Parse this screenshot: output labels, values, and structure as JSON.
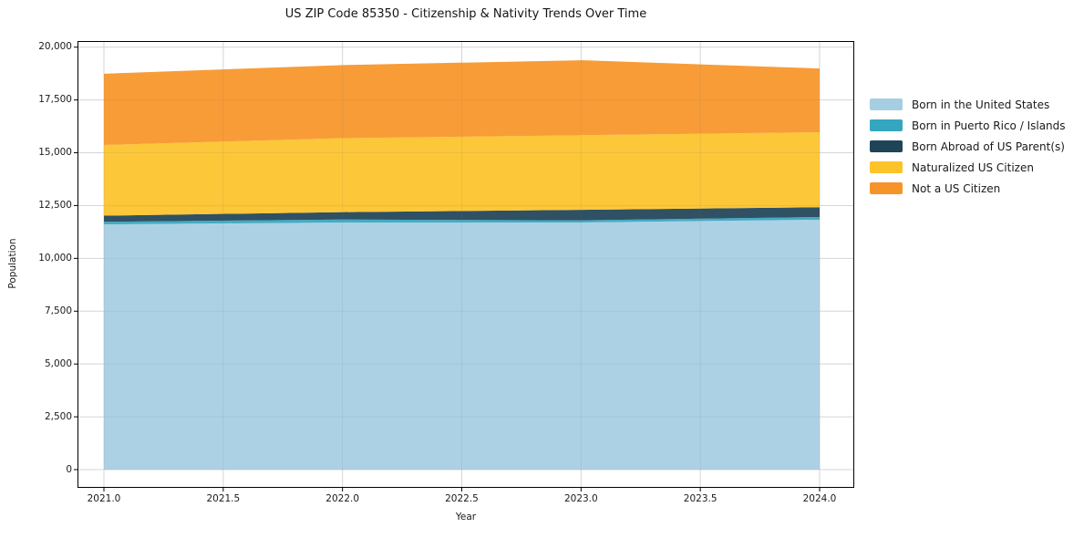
{
  "title": "US ZIP Code 85350 - Citizenship & Nativity Trends Over Time",
  "chart_data": {
    "type": "area",
    "stacked": true,
    "title": "US ZIP Code 85350 - Citizenship & Nativity Trends Over Time",
    "xlabel": "Year",
    "ylabel": "Population",
    "x": [
      2021,
      2022,
      2023,
      2024
    ],
    "series": [
      {
        "name": "Born in the United States",
        "color": "#a6cee3",
        "values": [
          11610,
          11700,
          11700,
          11830
        ]
      },
      {
        "name": "Born in Puerto Rico / Islands",
        "color": "#35a6c0",
        "values": [
          120,
          140,
          100,
          130
        ]
      },
      {
        "name": "Born Abroad of US Parent(s)",
        "color": "#1f4457",
        "values": [
          290,
          350,
          500,
          460
        ]
      },
      {
        "name": "Naturalized US Citizen",
        "color": "#fcc32a",
        "values": [
          3350,
          3500,
          3530,
          3550
        ]
      },
      {
        "name": "Not a US Citizen",
        "color": "#f79429",
        "values": [
          3370,
          3460,
          3550,
          3020
        ]
      }
    ],
    "stack_totals": [
      18740,
      19150,
      19380,
      18990
    ],
    "xticks": [
      2021.0,
      2021.5,
      2022.0,
      2022.5,
      2023.0,
      2023.5,
      2024.0
    ],
    "xtick_labels": [
      "2021.0",
      "2021.5",
      "2022.0",
      "2022.5",
      "2023.0",
      "2023.5",
      "2024.0"
    ],
    "yticks": [
      0,
      2500,
      5000,
      7500,
      10000,
      12500,
      15000,
      17500,
      20000
    ],
    "ytick_labels": [
      "0",
      "2,500",
      "5,000",
      "7,500",
      "10,000",
      "12,500",
      "15,000",
      "17,500",
      "20,000"
    ],
    "xlim": [
      2020.89,
      2024.15
    ],
    "ylim": [
      -900,
      20250
    ],
    "grid": true,
    "legend_position": "right",
    "colors": {
      "grid": "#e3e3e3",
      "spine": "#000000",
      "background": "#ffffff",
      "text": "#1a1a1a"
    }
  }
}
